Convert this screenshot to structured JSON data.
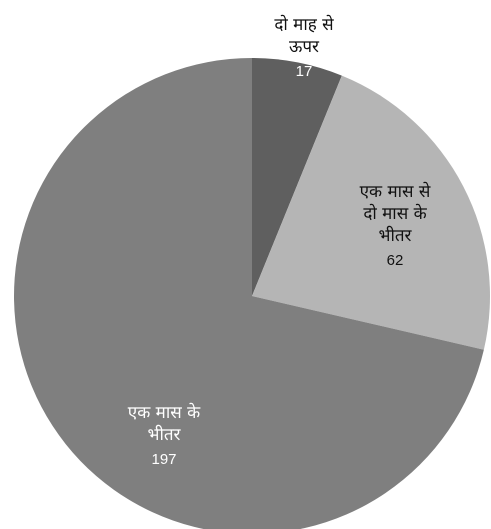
{
  "chart_data": {
    "type": "pie",
    "categories": [
      "दो माह से ऊपर",
      "एक मास से दो मास के भीतर",
      "एक मास के भीतर"
    ],
    "values": [
      17,
      62,
      197
    ],
    "slices": [
      {
        "label_lines": [
          "दो माह से",
          "ऊपर"
        ],
        "value": 17,
        "color": "#5f5f5f",
        "label_color": "#111111",
        "value_color": "#ffffff"
      },
      {
        "label_lines": [
          "एक मास से",
          "दो मास के",
          "भीतर"
        ],
        "value": 62,
        "color": "#b5b5b5",
        "label_color": "#111111",
        "value_color": "#111111"
      },
      {
        "label_lines": [
          "एक मास के",
          "भीतर"
        ],
        "value": 197,
        "color": "#7f7f7f",
        "label_color": "#ffffff",
        "value_color": "#ffffff"
      }
    ],
    "start_angle": "12 o'clock",
    "direction": "clockwise",
    "legend": "none"
  }
}
